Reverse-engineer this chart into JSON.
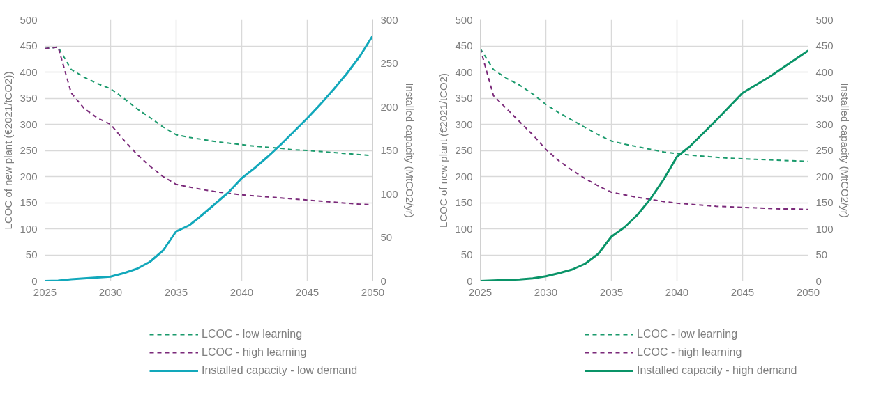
{
  "chart_data": [
    {
      "type": "line",
      "ylabel": "LCOC of new plant (€2021/tCO2))",
      "y2label": "Installed capacity (MtCO2/yr)",
      "x": [
        2025,
        2026,
        2027,
        2028,
        2029,
        2030,
        2031,
        2032,
        2033,
        2034,
        2035,
        2036,
        2037,
        2038,
        2039,
        2040,
        2041,
        2042,
        2043,
        2044,
        2045,
        2046,
        2047,
        2048,
        2049,
        2050
      ],
      "xlim": [
        2025,
        2050
      ],
      "xticks": [
        2025,
        2030,
        2035,
        2040,
        2045,
        2050
      ],
      "ylim": [
        0,
        500
      ],
      "yticks": [
        0,
        50,
        100,
        150,
        200,
        250,
        300,
        350,
        400,
        450,
        500
      ],
      "y2lim": [
        0,
        300
      ],
      "y2ticks": [
        0,
        50,
        100,
        150,
        200,
        250,
        300
      ],
      "grid": true,
      "legend": "bottom",
      "series": [
        {
          "name": "LCOC - low learning",
          "color": "#1a9a6c",
          "line_style": "dashed",
          "values": [
            445,
            448,
            405,
            390,
            378,
            368,
            350,
            330,
            313,
            295,
            280,
            275,
            271,
            267,
            264,
            261,
            258,
            256,
            254,
            251,
            250,
            248,
            246,
            244,
            242,
            240
          ]
        },
        {
          "name": "LCOC - high learning",
          "color": "#7b2a7a",
          "line_style": "dashed",
          "values": [
            445,
            448,
            360,
            330,
            312,
            300,
            270,
            243,
            220,
            200,
            185,
            180,
            175,
            171,
            168,
            165,
            163,
            161,
            159,
            157,
            155,
            153,
            151,
            149,
            147,
            146
          ]
        },
        {
          "name": "Installed capacity - low demand",
          "color": "#12a8bb",
          "line_style": "solid",
          "axis": "y2",
          "values": [
            0,
            0.5,
            2,
            3,
            4,
            5,
            9,
            14,
            22,
            35,
            57,
            64,
            76,
            89,
            102,
            118,
            130,
            143,
            157,
            172,
            187,
            203,
            220,
            238,
            258,
            282
          ]
        }
      ]
    },
    {
      "type": "line",
      "ylabel": "LCOC of new plant (€2021/tCO2)",
      "y2label": "Installed capacity (MtCO2/yr)",
      "x": [
        2025,
        2026,
        2027,
        2028,
        2029,
        2030,
        2031,
        2032,
        2033,
        2034,
        2035,
        2036,
        2037,
        2038,
        2039,
        2040,
        2041,
        2042,
        2043,
        2044,
        2045,
        2046,
        2047,
        2048,
        2049,
        2050
      ],
      "xlim": [
        2025,
        2050
      ],
      "xticks": [
        2025,
        2030,
        2035,
        2040,
        2045,
        2050
      ],
      "ylim": [
        0,
        500
      ],
      "yticks": [
        0,
        50,
        100,
        150,
        200,
        250,
        300,
        350,
        400,
        450,
        500
      ],
      "y2lim": [
        0,
        500
      ],
      "y2ticks": [
        0,
        50,
        100,
        150,
        200,
        250,
        300,
        350,
        400,
        450,
        500
      ],
      "grid": true,
      "legend": "bottom",
      "series": [
        {
          "name": "LCOC - low learning",
          "color": "#1a9a6c",
          "line_style": "dashed",
          "values": [
            445,
            405,
            388,
            375,
            358,
            338,
            322,
            308,
            294,
            280,
            268,
            262,
            257,
            252,
            247,
            244,
            241,
            239,
            237,
            235,
            234,
            233,
            232,
            231,
            230,
            229
          ]
        },
        {
          "name": "LCOC - high learning",
          "color": "#7b2a7a",
          "line_style": "dashed",
          "values": [
            445,
            355,
            330,
            305,
            280,
            252,
            230,
            212,
            196,
            182,
            170,
            165,
            160,
            156,
            152,
            149,
            147,
            145,
            143,
            142,
            141,
            140,
            139,
            138,
            138,
            137
          ]
        },
        {
          "name": "Installed capacity - high demand",
          "color": "#0a9468",
          "line_style": "solid",
          "axis": "y2",
          "values": [
            0,
            1,
            2,
            3,
            5,
            9,
            15,
            22,
            33,
            52,
            85,
            103,
            127,
            158,
            195,
            238,
            258,
            283,
            308,
            334,
            360,
            375,
            390,
            407,
            424,
            441
          ]
        }
      ]
    }
  ]
}
